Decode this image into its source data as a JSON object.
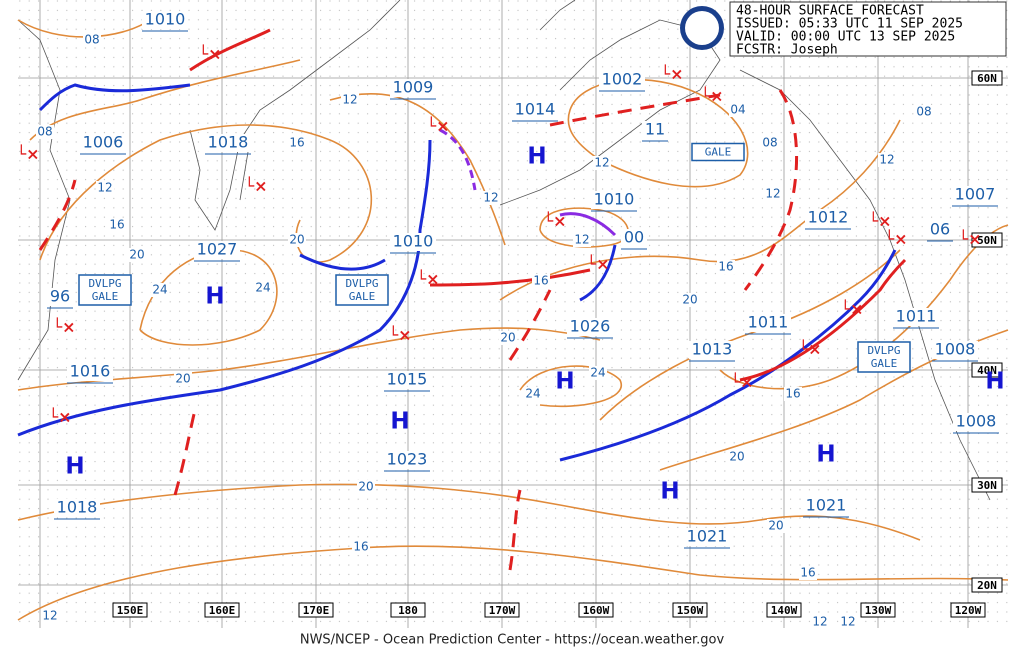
{
  "header": {
    "title": "48-HOUR SURFACE FORECAST",
    "issued": "ISSUED: 05:33 UTC 11 SEP 2025",
    "valid": "VALID:  00:00 UTC 13 SEP 2025",
    "forecaster": "FCSTR:  Joseph"
  },
  "longitude_labels": [
    "150E",
    "160E",
    "170E",
    "180",
    "170W",
    "160W",
    "150W",
    "140W",
    "130W",
    "120W"
  ],
  "latitude_labels": [
    "60N",
    "50N",
    "40N",
    "30N",
    "20N"
  ],
  "pressures": [
    "1010",
    "1006",
    "1018",
    "1027",
    "96",
    "1016",
    "1018",
    "1009",
    "1010",
    "1015",
    "1023",
    "1014",
    "1002",
    "11",
    "1010",
    "00",
    "1026",
    "1013",
    "1011",
    "1012",
    "1007",
    "06",
    "1011",
    "1008",
    "1008",
    "1021",
    "1021"
  ],
  "highs": [
    "H",
    "H",
    "H",
    "H",
    "H",
    "H",
    "H",
    "H"
  ],
  "isobars": [
    "08",
    "08",
    "12",
    "16",
    "20",
    "24",
    "24",
    "20",
    "16",
    "12",
    "12",
    "12",
    "12",
    "16",
    "20",
    "20",
    "24",
    "24",
    "20",
    "16",
    "04",
    "08",
    "12",
    "16",
    "20",
    "16",
    "20",
    "20",
    "16",
    "12",
    "08",
    "12",
    "12",
    "12"
  ],
  "gale_boxes": [
    [
      "DVLPG",
      "GALE"
    ],
    [
      "DVLPG",
      "GALE"
    ],
    [
      "DVLPG",
      "GALE"
    ],
    [
      "GALE"
    ]
  ],
  "footer": "NWS/NCEP - Ocean Prediction Center - https://ocean.weather.gov"
}
